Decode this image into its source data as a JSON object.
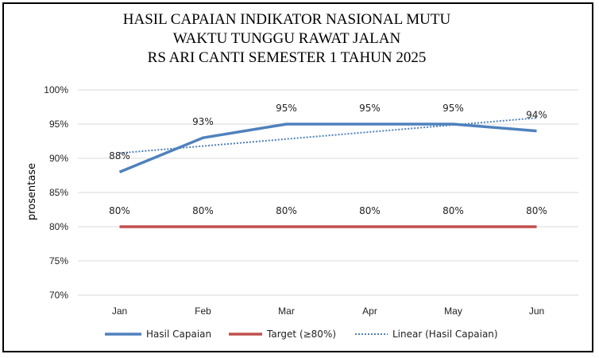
{
  "chart_data": {
    "type": "line",
    "title": [
      "HASIL CAPAIAN INDIKATOR NASIONAL MUTU",
      "WAKTU TUNGGU RAWAT JALAN",
      "RS ARI CANTI SEMESTER 1 TAHUN 2025"
    ],
    "xlabel": "",
    "ylabel": "prosentase",
    "categories": [
      "Jan",
      "Feb",
      "Mar",
      "Apr",
      "May",
      "Jun"
    ],
    "ylim": [
      70,
      100
    ],
    "yticks": [
      "70%",
      "75%",
      "80%",
      "85%",
      "90%",
      "95%",
      "100%"
    ],
    "grid": true,
    "legend_position": "bottom",
    "series": [
      {
        "name": "Hasil Capaian",
        "values": [
          88,
          93,
          95,
          95,
          95,
          94
        ],
        "labels": [
          "88%",
          "93%",
          "95%",
          "95%",
          "95%",
          "94%"
        ],
        "color": "#4F81BD"
      },
      {
        "name": "Target (≥80%)",
        "values": [
          80,
          80,
          80,
          80,
          80,
          80
        ],
        "labels": [
          "80%",
          "80%",
          "80%",
          "80%",
          "80%",
          "80%"
        ],
        "color": "#C0504D"
      },
      {
        "name": "Linear (Hasil Capaian)",
        "trendline": true,
        "color": "#4F81BD"
      }
    ]
  }
}
